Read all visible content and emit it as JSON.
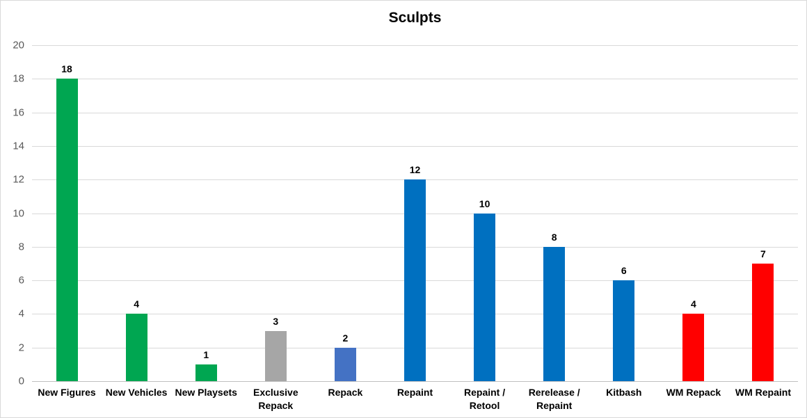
{
  "chart": {
    "title": "Sculpts"
  },
  "chart_data": {
    "type": "bar",
    "title": "Sculpts",
    "categories": [
      "New Figures",
      "New Vehicles",
      "New Playsets",
      "Exclusive Repack",
      "Repack",
      "Repaint",
      "Repaint / Retool",
      "Rerelease / Repaint",
      "Kitbash",
      "WM Repack",
      "WM Repaint"
    ],
    "values": [
      18,
      4,
      1,
      3,
      2,
      12,
      10,
      8,
      6,
      4,
      7
    ],
    "bar_colors": [
      "#00A651",
      "#00A651",
      "#00A651",
      "#A6A6A6",
      "#4472C4",
      "#0070C0",
      "#0070C0",
      "#0070C0",
      "#0070C0",
      "#FF0000",
      "#FF0000"
    ],
    "xlabel": "",
    "ylabel": "",
    "ylim": [
      0,
      20
    ],
    "yticks": [
      0,
      2,
      4,
      6,
      8,
      10,
      12,
      14,
      16,
      18,
      20
    ],
    "grid": true,
    "legend": false,
    "data_labels_shown": true,
    "style_colors": {
      "grid": "#D9D9D9",
      "axis_line": "#BFBFBF",
      "tick_label": "#595959",
      "value_label": "#000000",
      "frame_border": "#D9D9D9",
      "background": "#FFFFFF"
    }
  }
}
